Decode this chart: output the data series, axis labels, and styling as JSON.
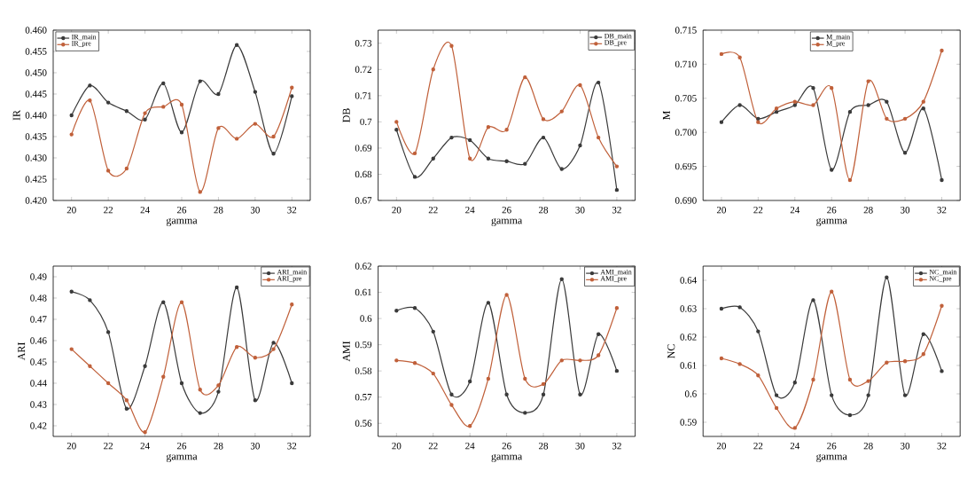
{
  "chart_data": [
    {
      "type": "line",
      "xlabel": "gamma",
      "ylabel": "IR",
      "x": [
        20,
        21,
        22,
        23,
        24,
        25,
        26,
        27,
        28,
        29,
        30,
        31,
        32
      ],
      "xlim": [
        19,
        33
      ],
      "xticks": [
        20,
        22,
        24,
        26,
        28,
        30,
        32
      ],
      "ylim": [
        0.42,
        0.46
      ],
      "yticks": [
        {
          "value": 0.42,
          "label": "0.420"
        },
        {
          "value": 0.425,
          "label": "0.425"
        },
        {
          "value": 0.43,
          "label": "0.430"
        },
        {
          "value": 0.435,
          "label": "0.435"
        },
        {
          "value": 0.44,
          "label": "0.440"
        },
        {
          "value": 0.445,
          "label": "0.445"
        },
        {
          "value": 0.45,
          "label": "0.450"
        },
        {
          "value": 0.455,
          "label": "0.455"
        },
        {
          "value": 0.46,
          "label": "0.460"
        }
      ],
      "legend": "top left",
      "marker": "circle",
      "series": [
        {
          "name": "IR_main",
          "color": "#3a3a3a",
          "values": [
            0.44,
            0.447,
            0.443,
            0.441,
            0.439,
            0.4475,
            0.436,
            0.448,
            0.445,
            0.4565,
            0.4455,
            0.431,
            0.4445
          ]
        },
        {
          "name": "IR_pre",
          "color": "#c0603a",
          "values": [
            0.4355,
            0.4435,
            0.427,
            0.4275,
            0.4405,
            0.442,
            0.4425,
            0.422,
            0.437,
            0.4345,
            0.438,
            0.435,
            0.4465
          ]
        }
      ]
    },
    {
      "type": "line",
      "xlabel": "gamma",
      "ylabel": "DB",
      "x": [
        20,
        21,
        22,
        23,
        24,
        25,
        26,
        27,
        28,
        29,
        30,
        31,
        32
      ],
      "xlim": [
        19,
        33
      ],
      "xticks": [
        20,
        22,
        24,
        26,
        28,
        30,
        32
      ],
      "ylim": [
        0.67,
        0.735
      ],
      "yticks": [
        0.67,
        0.68,
        0.69,
        0.7,
        0.71,
        0.72,
        0.73
      ],
      "legend": "top right",
      "marker": "circle",
      "series": [
        {
          "name": "DB_main",
          "color": "#3a3a3a",
          "values": [
            0.697,
            0.679,
            0.686,
            0.694,
            0.693,
            0.686,
            0.685,
            0.684,
            0.694,
            0.682,
            0.691,
            0.715,
            0.674
          ]
        },
        {
          "name": "DB_pre",
          "color": "#c0603a",
          "values": [
            0.7,
            0.688,
            0.72,
            0.729,
            0.686,
            0.698,
            0.697,
            0.717,
            0.701,
            0.704,
            0.714,
            0.694,
            0.683
          ]
        }
      ]
    },
    {
      "type": "line",
      "xlabel": "gamma",
      "ylabel": "M",
      "x": [
        20,
        21,
        22,
        23,
        24,
        25,
        26,
        27,
        28,
        29,
        30,
        31,
        32
      ],
      "xlim": [
        19,
        33
      ],
      "xticks": [
        20,
        22,
        24,
        26,
        28,
        30,
        32
      ],
      "ylim": [
        0.69,
        0.715
      ],
      "yticks": [
        {
          "value": 0.69,
          "label": "0.690"
        },
        {
          "value": 0.695,
          "label": "0.695"
        },
        {
          "value": 0.7,
          "label": "0.700"
        },
        {
          "value": 0.705,
          "label": "0.705"
        },
        {
          "value": 0.71,
          "label": "0.710"
        },
        {
          "value": 0.715,
          "label": "0.715"
        }
      ],
      "legend": "top",
      "marker": "circle",
      "series": [
        {
          "name": "M_main",
          "color": "#3a3a3a",
          "values": [
            0.7015,
            0.704,
            0.702,
            0.703,
            0.704,
            0.7065,
            0.6945,
            0.703,
            0.704,
            0.7045,
            0.697,
            0.7035,
            0.693
          ]
        },
        {
          "name": "M_pre",
          "color": "#c0603a",
          "values": [
            0.7115,
            0.711,
            0.7015,
            0.7035,
            0.7045,
            0.704,
            0.7065,
            0.693,
            0.7075,
            0.702,
            0.702,
            0.7045,
            0.712
          ]
        }
      ]
    },
    {
      "type": "line",
      "xlabel": "gamma",
      "ylabel": "ARI",
      "x": [
        20,
        21,
        22,
        23,
        24,
        25,
        26,
        27,
        28,
        29,
        30,
        31,
        32
      ],
      "xlim": [
        19,
        33
      ],
      "xticks": [
        20,
        22,
        24,
        26,
        28,
        30,
        32
      ],
      "ylim": [
        0.415,
        0.495
      ],
      "yticks": [
        0.42,
        0.43,
        0.44,
        0.45,
        0.46,
        0.47,
        0.48,
        0.49
      ],
      "legend": "top right",
      "marker": "circle",
      "series": [
        {
          "name": "ARI_main",
          "color": "#3a3a3a",
          "values": [
            0.483,
            0.479,
            0.464,
            0.428,
            0.448,
            0.478,
            0.44,
            0.426,
            0.436,
            0.485,
            0.432,
            0.459,
            0.44
          ]
        },
        {
          "name": "ARI_pre",
          "color": "#c0603a",
          "values": [
            0.456,
            0.448,
            0.44,
            0.432,
            0.417,
            0.443,
            0.478,
            0.437,
            0.439,
            0.457,
            0.452,
            0.456,
            0.477
          ]
        }
      ]
    },
    {
      "type": "line",
      "xlabel": "gamma",
      "ylabel": "AMI",
      "x": [
        20,
        21,
        22,
        23,
        24,
        25,
        26,
        27,
        28,
        29,
        30,
        31,
        32
      ],
      "xlim": [
        19,
        33
      ],
      "xticks": [
        20,
        22,
        24,
        26,
        28,
        30,
        32
      ],
      "ylim": [
        0.555,
        0.62
      ],
      "yticks": [
        0.56,
        0.57,
        0.58,
        0.59,
        0.6,
        0.61,
        0.62
      ],
      "legend": "top right",
      "marker": "circle",
      "series": [
        {
          "name": "AMI_main",
          "color": "#3a3a3a",
          "values": [
            0.603,
            0.604,
            0.595,
            0.571,
            0.576,
            0.606,
            0.571,
            0.564,
            0.571,
            0.615,
            0.571,
            0.594,
            0.58
          ]
        },
        {
          "name": "AMI_pre",
          "color": "#c0603a",
          "values": [
            0.584,
            0.583,
            0.579,
            0.567,
            0.559,
            0.577,
            0.609,
            0.577,
            0.575,
            0.584,
            0.584,
            0.586,
            0.604
          ]
        }
      ]
    },
    {
      "type": "line",
      "xlabel": "gamma",
      "ylabel": "NC",
      "x": [
        20,
        21,
        22,
        23,
        24,
        25,
        26,
        27,
        28,
        29,
        30,
        31,
        32
      ],
      "xlim": [
        19,
        33
      ],
      "xticks": [
        20,
        22,
        24,
        26,
        28,
        30,
        32
      ],
      "ylim": [
        0.585,
        0.645
      ],
      "yticks": [
        0.59,
        0.6,
        0.61,
        0.62,
        0.63,
        0.64
      ],
      "legend": "top right",
      "marker": "circle",
      "series": [
        {
          "name": "NC_main",
          "color": "#3a3a3a",
          "values": [
            0.63,
            0.6305,
            0.622,
            0.5995,
            0.604,
            0.633,
            0.5995,
            0.5925,
            0.5995,
            0.641,
            0.5995,
            0.621,
            0.608
          ]
        },
        {
          "name": "NC_pre",
          "color": "#c0603a",
          "values": [
            0.6125,
            0.6105,
            0.6065,
            0.595,
            0.588,
            0.605,
            0.636,
            0.605,
            0.6045,
            0.611,
            0.6115,
            0.614,
            0.631
          ]
        }
      ]
    }
  ]
}
